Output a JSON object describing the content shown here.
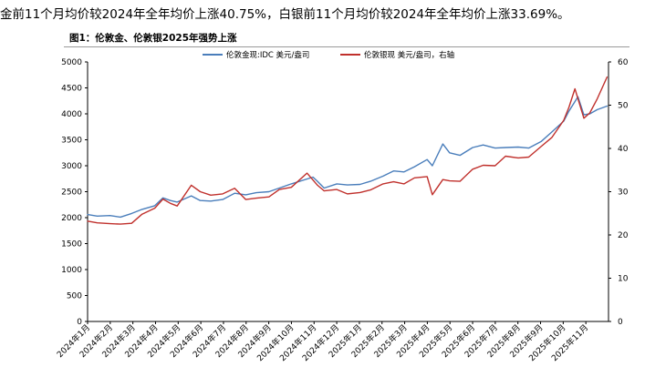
{
  "intro_text": "金前11个月均价较2024年全年均价上涨40.75%，白银前11个月均价较2024年全年均价上涨33.69%。",
  "figure_title": "图1：伦敦金、伦敦银2025年强势上涨",
  "chart_data": {
    "type": "line",
    "title": "图1：伦敦金、伦敦银2025年强势上涨",
    "x_tick_labels": [
      "2024年1月",
      "2024年2月",
      "2024年3月",
      "2024年4月",
      "2024年5月",
      "2024年6月",
      "2024年7月",
      "2024年8月",
      "2024年9月",
      "2024年10月",
      "2024年11月",
      "2024年12月",
      "2025年1月",
      "2025年2月",
      "2025年3月",
      "2025年4月",
      "2025年5月",
      "2025年6月",
      "2025年7月",
      "2025年8月",
      "2025年9月",
      "2025年10月",
      "2025年11月"
    ],
    "y_left": {
      "min": 0,
      "max": 5000,
      "step": 500,
      "ticks": [
        "0",
        "500",
        "1000",
        "1500",
        "2000",
        "2500",
        "3000",
        "3500",
        "4000",
        "4500",
        "5000"
      ]
    },
    "y_right": {
      "min": 0,
      "max": 60,
      "step": 10,
      "ticks": [
        "0",
        "10",
        "20",
        "30",
        "40",
        "50",
        "60"
      ]
    },
    "legend_position": "top",
    "grid": false,
    "series": [
      {
        "name": "伦敦金现:IDC 美元/盎司",
        "axis": "left",
        "color": "#4a7ebb",
        "x": [
          "2024-01-02",
          "2024-01-15",
          "2024-02-01",
          "2024-02-15",
          "2024-03-01",
          "2024-03-15",
          "2024-04-01",
          "2024-04-12",
          "2024-04-22",
          "2024-05-01",
          "2024-05-20",
          "2024-06-01",
          "2024-06-15",
          "2024-07-01",
          "2024-07-17",
          "2024-08-01",
          "2024-08-15",
          "2024-09-01",
          "2024-09-15",
          "2024-10-01",
          "2024-10-30",
          "2024-11-05",
          "2024-11-14",
          "2024-12-01",
          "2024-12-15",
          "2025-01-01",
          "2025-01-15",
          "2025-02-01",
          "2025-02-15",
          "2025-03-01",
          "2025-03-15",
          "2025-04-01",
          "2025-04-08",
          "2025-04-22",
          "2025-05-01",
          "2025-05-15",
          "2025-06-01",
          "2025-06-15",
          "2025-07-01",
          "2025-07-15",
          "2025-08-01",
          "2025-08-15",
          "2025-09-01",
          "2025-09-15",
          "2025-10-01",
          "2025-10-08",
          "2025-10-20",
          "2025-10-28",
          "2025-11-05",
          "2025-11-15",
          "2025-11-28"
        ],
        "values": [
          2060,
          2030,
          2040,
          2010,
          2080,
          2160,
          2230,
          2380,
          2330,
          2300,
          2420,
          2330,
          2320,
          2350,
          2470,
          2440,
          2480,
          2500,
          2570,
          2650,
          2780,
          2700,
          2570,
          2650,
          2630,
          2640,
          2700,
          2800,
          2900,
          2880,
          2980,
          3120,
          3000,
          3420,
          3250,
          3200,
          3350,
          3400,
          3340,
          3350,
          3360,
          3340,
          3470,
          3650,
          3860,
          4050,
          4330,
          3980,
          4000,
          4080,
          4150
        ]
      },
      {
        "name": "伦敦银现 美元/盎司，右轴",
        "axis": "right",
        "color": "#c0302c",
        "x": [
          "2024-01-02",
          "2024-01-15",
          "2024-02-01",
          "2024-02-15",
          "2024-03-01",
          "2024-03-15",
          "2024-04-01",
          "2024-04-12",
          "2024-04-22",
          "2024-05-01",
          "2024-05-20",
          "2024-06-01",
          "2024-06-15",
          "2024-07-01",
          "2024-07-17",
          "2024-08-01",
          "2024-08-15",
          "2024-09-01",
          "2024-09-15",
          "2024-10-01",
          "2024-10-22",
          "2024-11-05",
          "2024-11-14",
          "2024-12-01",
          "2024-12-15",
          "2025-01-01",
          "2025-01-15",
          "2025-02-01",
          "2025-02-15",
          "2025-03-01",
          "2025-03-15",
          "2025-04-01",
          "2025-04-08",
          "2025-04-22",
          "2025-05-01",
          "2025-05-15",
          "2025-06-01",
          "2025-06-15",
          "2025-07-01",
          "2025-07-15",
          "2025-08-01",
          "2025-08-15",
          "2025-09-01",
          "2025-09-15",
          "2025-10-01",
          "2025-10-08",
          "2025-10-16",
          "2025-10-28",
          "2025-11-05",
          "2025-11-15",
          "2025-11-28"
        ],
        "values": [
          23.2,
          22.8,
          22.6,
          22.5,
          22.7,
          24.8,
          26.2,
          28.3,
          27.3,
          26.7,
          31.5,
          30.0,
          29.2,
          29.5,
          30.8,
          28.2,
          28.5,
          28.8,
          30.5,
          31.0,
          34.3,
          31.5,
          30.2,
          30.5,
          29.5,
          29.8,
          30.4,
          31.8,
          32.3,
          31.8,
          33.2,
          33.5,
          29.3,
          32.8,
          32.5,
          32.4,
          35.2,
          36.1,
          36.0,
          38.2,
          37.8,
          38.0,
          40.5,
          42.5,
          46.5,
          49.5,
          53.8,
          47.0,
          48.2,
          51.5,
          56.5
        ]
      }
    ]
  }
}
